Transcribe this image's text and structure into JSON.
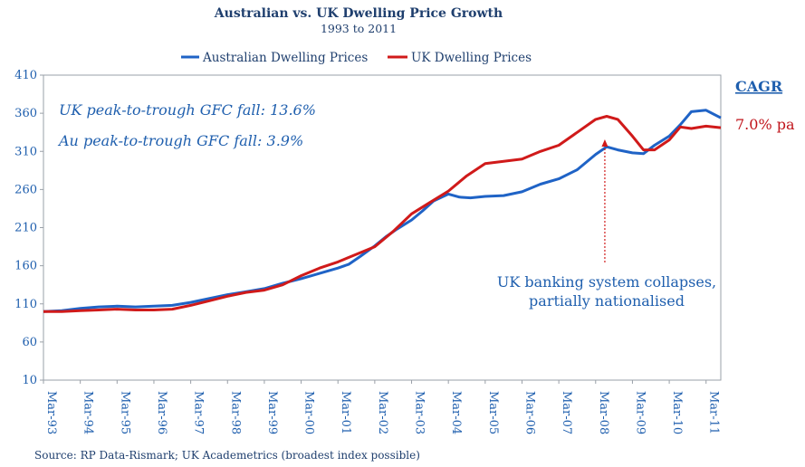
{
  "chart_data": {
    "type": "line",
    "title": "Australian vs. UK  Dwelling Price Growth",
    "subtitle": "1993 to 2011",
    "ylim": [
      10,
      410
    ],
    "yticks": [
      10,
      60,
      110,
      160,
      210,
      260,
      310,
      360,
      410
    ],
    "xlim": [
      0,
      18.4
    ],
    "xtick_labels": [
      "Mar-93",
      "Mar-94",
      "Mar-95",
      "Mar-96",
      "Mar-97",
      "Mar-98",
      "Mar-99",
      "Mar-00",
      "Mar-01",
      "Mar-02",
      "Mar-03",
      "Mar-04",
      "Mar-05",
      "Mar-06",
      "Mar-07",
      "Mar-08",
      "Mar-09",
      "Mar-10",
      "Mar-11"
    ],
    "x_units": "years since Mar-93",
    "series": [
      {
        "name": "Australian Dwelling Prices",
        "color": "#1f63c6",
        "points": [
          [
            0,
            100
          ],
          [
            0.5,
            101
          ],
          [
            1,
            104
          ],
          [
            1.5,
            106
          ],
          [
            2,
            107
          ],
          [
            2.5,
            106
          ],
          [
            3,
            107
          ],
          [
            3.5,
            108
          ],
          [
            4,
            112
          ],
          [
            4.5,
            117
          ],
          [
            5,
            122
          ],
          [
            5.5,
            126
          ],
          [
            6,
            130
          ],
          [
            6.5,
            137
          ],
          [
            7,
            143
          ],
          [
            7.5,
            150
          ],
          [
            8,
            157
          ],
          [
            8.3,
            162
          ],
          [
            8.6,
            172
          ],
          [
            9,
            186
          ],
          [
            9.3,
            198
          ],
          [
            9.6,
            208
          ],
          [
            10,
            220
          ],
          [
            10.3,
            232
          ],
          [
            10.6,
            245
          ],
          [
            11,
            254
          ],
          [
            11.3,
            250
          ],
          [
            11.6,
            249
          ],
          [
            12,
            251
          ],
          [
            12.5,
            252
          ],
          [
            13,
            257
          ],
          [
            13.5,
            267
          ],
          [
            14,
            274
          ],
          [
            14.5,
            286
          ],
          [
            15,
            306
          ],
          [
            15.3,
            316
          ],
          [
            15.6,
            312
          ],
          [
            16,
            308
          ],
          [
            16.3,
            307
          ],
          [
            16.6,
            318
          ],
          [
            17,
            330
          ],
          [
            17.3,
            345
          ],
          [
            17.6,
            362
          ],
          [
            18,
            364
          ],
          [
            18.4,
            354
          ]
        ]
      },
      {
        "name": "UK Dwelling Prices",
        "color": "#d01a1a",
        "points": [
          [
            0,
            100
          ],
          [
            0.5,
            100
          ],
          [
            1,
            101
          ],
          [
            1.5,
            102
          ],
          [
            2,
            103
          ],
          [
            2.5,
            102
          ],
          [
            3,
            102
          ],
          [
            3.5,
            103
          ],
          [
            4,
            108
          ],
          [
            4.5,
            114
          ],
          [
            5,
            120
          ],
          [
            5.5,
            125
          ],
          [
            6,
            128
          ],
          [
            6.5,
            135
          ],
          [
            7,
            147
          ],
          [
            7.5,
            157
          ],
          [
            8,
            165
          ],
          [
            8.5,
            175
          ],
          [
            9,
            185
          ],
          [
            9.5,
            205
          ],
          [
            10,
            228
          ],
          [
            10.5,
            243
          ],
          [
            11,
            258
          ],
          [
            11.5,
            278
          ],
          [
            12,
            294
          ],
          [
            12.5,
            297
          ],
          [
            13,
            300
          ],
          [
            13.5,
            310
          ],
          [
            14,
            318
          ],
          [
            14.5,
            335
          ],
          [
            15,
            352
          ],
          [
            15.3,
            356
          ],
          [
            15.6,
            352
          ],
          [
            16,
            330
          ],
          [
            16.3,
            312
          ],
          [
            16.6,
            312
          ],
          [
            17,
            325
          ],
          [
            17.3,
            342
          ],
          [
            17.6,
            340
          ],
          [
            18,
            343
          ],
          [
            18.4,
            341
          ]
        ]
      }
    ],
    "annotations": {
      "uk_fall": "UK peak-to-trough GFC fall: 13.6%",
      "au_fall": "Au peak-to-trough GFC fall: 3.9%",
      "event_line1": "UK banking system collapses,",
      "event_line2": "partially nationalised",
      "event_x": 15.25
    },
    "cagr_label": "CAGR",
    "cagr_value": "7.0% pa",
    "source": "Source: RP Data-Rismark; UK Academetrics (broadest index possible)"
  }
}
